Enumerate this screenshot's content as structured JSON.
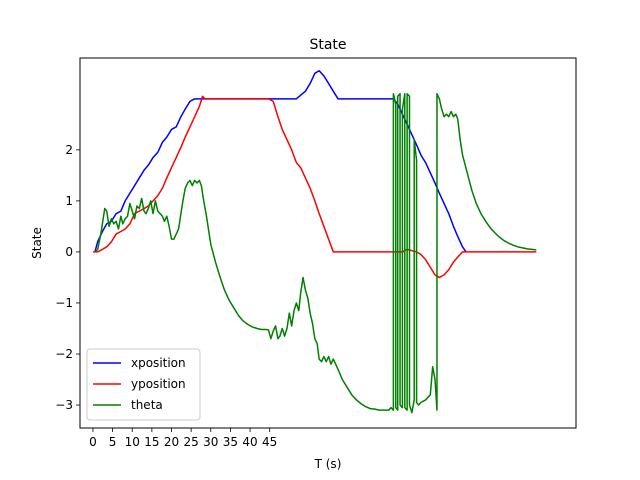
{
  "chart_data": {
    "type": "line",
    "title": "State",
    "xlabel": "T (s)",
    "ylabel": "State",
    "xlim": [
      -3.3,
      123
    ],
    "ylim": [
      -3.45,
      3.8
    ],
    "xticks": [
      0,
      5,
      10,
      15,
      20,
      25,
      30,
      35,
      40,
      45
    ],
    "yticks": [
      -3,
      -2,
      -1,
      0,
      1,
      2
    ],
    "grid": false,
    "legend_position": "lower-left",
    "series": [
      {
        "name": "xposition",
        "color": "#0000ff",
        "points": [
          [
            0.5,
            0.0
          ],
          [
            1.2,
            0.2
          ],
          [
            2.4,
            0.4
          ],
          [
            3.5,
            0.55
          ],
          [
            4.7,
            0.6
          ],
          [
            5.9,
            0.75
          ],
          [
            7.1,
            0.8
          ],
          [
            8.2,
            1.0
          ],
          [
            9.4,
            1.15
          ],
          [
            10.6,
            1.3
          ],
          [
            11.8,
            1.45
          ],
          [
            13.0,
            1.6
          ],
          [
            14.1,
            1.7
          ],
          [
            15.3,
            1.85
          ],
          [
            16.5,
            1.95
          ],
          [
            17.7,
            2.15
          ],
          [
            18.8,
            2.25
          ],
          [
            20.0,
            2.4
          ],
          [
            21.2,
            2.45
          ],
          [
            22.4,
            2.65
          ],
          [
            23.5,
            2.8
          ],
          [
            24.7,
            2.95
          ],
          [
            25.9,
            3.0
          ],
          [
            28.2,
            3.0
          ],
          [
            45.0,
            3.0
          ],
          [
            47.1,
            3.0
          ],
          [
            49.4,
            3.0
          ],
          [
            51.8,
            3.0
          ],
          [
            54.1,
            3.15
          ],
          [
            55.3,
            3.3
          ],
          [
            56.5,
            3.5
          ],
          [
            57.6,
            3.55
          ],
          [
            58.8,
            3.45
          ],
          [
            60.0,
            3.3
          ],
          [
            61.2,
            3.15
          ],
          [
            62.4,
            3.0
          ],
          [
            64.7,
            3.0
          ],
          [
            76.5,
            3.0
          ],
          [
            77.6,
            2.9
          ],
          [
            78.8,
            2.7
          ],
          [
            80.0,
            2.5
          ],
          [
            81.2,
            2.3
          ],
          [
            82.4,
            2.1
          ],
          [
            83.5,
            1.9
          ],
          [
            84.7,
            1.75
          ],
          [
            85.9,
            1.55
          ],
          [
            87.1,
            1.35
          ],
          [
            88.2,
            1.15
          ],
          [
            89.4,
            0.95
          ],
          [
            90.6,
            0.75
          ],
          [
            91.8,
            0.5
          ],
          [
            92.9,
            0.3
          ],
          [
            94.1,
            0.1
          ],
          [
            95.0,
            0.0
          ]
        ]
      },
      {
        "name": "yposition",
        "color": "#ff0000",
        "points": [
          [
            0.0,
            0.0
          ],
          [
            1.2,
            0.0
          ],
          [
            2.4,
            0.05
          ],
          [
            3.5,
            0.1
          ],
          [
            4.7,
            0.2
          ],
          [
            5.9,
            0.35
          ],
          [
            7.1,
            0.4
          ],
          [
            8.2,
            0.45
          ],
          [
            9.4,
            0.55
          ],
          [
            10.6,
            0.75
          ],
          [
            11.8,
            0.8
          ],
          [
            13.0,
            0.85
          ],
          [
            14.1,
            0.9
          ],
          [
            15.3,
            1.0
          ],
          [
            16.5,
            1.1
          ],
          [
            17.7,
            1.25
          ],
          [
            18.8,
            1.45
          ],
          [
            20.0,
            1.65
          ],
          [
            21.2,
            1.85
          ],
          [
            22.4,
            2.05
          ],
          [
            23.5,
            2.25
          ],
          [
            24.7,
            2.45
          ],
          [
            25.9,
            2.65
          ],
          [
            27.1,
            2.85
          ],
          [
            27.9,
            3.05
          ],
          [
            28.5,
            3.0
          ],
          [
            44.7,
            3.0
          ],
          [
            45.9,
            2.95
          ],
          [
            47.1,
            2.65
          ],
          [
            48.2,
            2.4
          ],
          [
            49.4,
            2.2
          ],
          [
            50.6,
            2.0
          ],
          [
            51.8,
            1.75
          ],
          [
            52.9,
            1.65
          ],
          [
            54.1,
            1.45
          ],
          [
            55.3,
            1.25
          ],
          [
            56.5,
            1.0
          ],
          [
            57.6,
            0.75
          ],
          [
            58.8,
            0.5
          ],
          [
            60.0,
            0.25
          ],
          [
            61.2,
            0.0
          ],
          [
            76.5,
            0.0
          ],
          [
            78.8,
            0.0
          ],
          [
            80.0,
            0.05
          ],
          [
            82.4,
            0.0
          ],
          [
            83.5,
            -0.05
          ],
          [
            84.7,
            -0.15
          ],
          [
            85.9,
            -0.3
          ],
          [
            87.1,
            -0.45
          ],
          [
            88.2,
            -0.5
          ],
          [
            89.4,
            -0.45
          ],
          [
            90.6,
            -0.35
          ],
          [
            91.8,
            -0.2
          ],
          [
            92.9,
            -0.1
          ],
          [
            94.1,
            0.0
          ],
          [
            112.9,
            0.0
          ]
        ]
      },
      {
        "name": "theta",
        "color": "#008000",
        "points": [
          [
            0.5,
            0.0
          ],
          [
            1.2,
            0.05
          ],
          [
            2.0,
            0.35
          ],
          [
            2.4,
            0.55
          ],
          [
            3.0,
            0.85
          ],
          [
            3.5,
            0.8
          ],
          [
            4.1,
            0.5
          ],
          [
            4.7,
            0.65
          ],
          [
            5.3,
            0.55
          ],
          [
            5.9,
            0.6
          ],
          [
            6.5,
            0.45
          ],
          [
            7.1,
            0.7
          ],
          [
            7.6,
            0.55
          ],
          [
            8.2,
            0.65
          ],
          [
            8.8,
            0.7
          ],
          [
            9.4,
            0.95
          ],
          [
            10.0,
            0.8
          ],
          [
            10.6,
            0.65
          ],
          [
            11.2,
            0.9
          ],
          [
            11.8,
            0.85
          ],
          [
            12.4,
            1.05
          ],
          [
            13.0,
            0.8
          ],
          [
            13.5,
            0.75
          ],
          [
            14.1,
            0.85
          ],
          [
            14.7,
            1.0
          ],
          [
            15.3,
            0.75
          ],
          [
            15.9,
            1.0
          ],
          [
            16.5,
            0.8
          ],
          [
            17.1,
            0.75
          ],
          [
            17.7,
            0.7
          ],
          [
            18.2,
            0.6
          ],
          [
            18.8,
            0.7
          ],
          [
            19.4,
            0.5
          ],
          [
            20.0,
            0.25
          ],
          [
            20.6,
            0.25
          ],
          [
            21.2,
            0.35
          ],
          [
            21.8,
            0.45
          ],
          [
            22.4,
            0.75
          ],
          [
            22.9,
            1.0
          ],
          [
            23.5,
            1.25
          ],
          [
            24.1,
            1.35
          ],
          [
            24.7,
            1.4
          ],
          [
            25.3,
            1.3
          ],
          [
            25.9,
            1.4
          ],
          [
            26.5,
            1.35
          ],
          [
            27.1,
            1.4
          ],
          [
            27.6,
            1.3
          ],
          [
            28.2,
            1.0
          ],
          [
            28.8,
            0.75
          ],
          [
            29.4,
            0.45
          ],
          [
            30.0,
            0.15
          ],
          [
            31.2,
            -0.2
          ],
          [
            32.4,
            -0.5
          ],
          [
            33.5,
            -0.75
          ],
          [
            34.7,
            -0.95
          ],
          [
            35.9,
            -1.1
          ],
          [
            37.1,
            -1.25
          ],
          [
            38.2,
            -1.35
          ],
          [
            39.4,
            -1.42
          ],
          [
            40.6,
            -1.47
          ],
          [
            41.8,
            -1.5
          ],
          [
            42.9,
            -1.52
          ],
          [
            44.1,
            -1.52
          ],
          [
            44.7,
            -1.53
          ],
          [
            45.3,
            -1.7
          ],
          [
            45.9,
            -1.55
          ],
          [
            46.5,
            -1.45
          ],
          [
            47.1,
            -1.7
          ],
          [
            47.6,
            -1.65
          ],
          [
            48.2,
            -1.5
          ],
          [
            48.8,
            -1.65
          ],
          [
            49.4,
            -1.5
          ],
          [
            50.0,
            -1.2
          ],
          [
            50.6,
            -1.45
          ],
          [
            51.2,
            -1.15
          ],
          [
            51.8,
            -1.0
          ],
          [
            52.4,
            -1.15
          ],
          [
            52.9,
            -0.8
          ],
          [
            53.5,
            -0.5
          ],
          [
            54.1,
            -0.75
          ],
          [
            54.7,
            -0.9
          ],
          [
            55.3,
            -1.2
          ],
          [
            55.9,
            -1.4
          ],
          [
            56.5,
            -1.7
          ],
          [
            57.1,
            -1.8
          ],
          [
            57.6,
            -2.1
          ],
          [
            58.2,
            -2.15
          ],
          [
            58.8,
            -2.05
          ],
          [
            59.4,
            -2.15
          ],
          [
            60.0,
            -2.05
          ],
          [
            60.6,
            -2.2
          ],
          [
            61.2,
            -2.1
          ],
          [
            62.4,
            -2.3
          ],
          [
            63.5,
            -2.5
          ],
          [
            64.7,
            -2.65
          ],
          [
            65.9,
            -2.8
          ],
          [
            67.1,
            -2.9
          ],
          [
            68.2,
            -2.97
          ],
          [
            69.4,
            -3.03
          ],
          [
            70.6,
            -3.07
          ],
          [
            71.8,
            -3.08
          ],
          [
            72.9,
            -3.1
          ],
          [
            75.3,
            -3.1
          ],
          [
            75.9,
            -3.05
          ],
          [
            76.5,
            -3.1
          ],
          [
            76.5,
            3.1
          ],
          [
            77.1,
            2.9
          ],
          [
            77.1,
            -3.05
          ],
          [
            77.6,
            -3.1
          ],
          [
            77.6,
            3.05
          ],
          [
            78.2,
            3.1
          ],
          [
            78.2,
            -3.0
          ],
          [
            78.8,
            -3.05
          ],
          [
            78.8,
            2.8
          ],
          [
            79.4,
            3.1
          ],
          [
            79.4,
            -3.05
          ],
          [
            80.0,
            -3.1
          ],
          [
            80.0,
            3.1
          ],
          [
            80.6,
            3.05
          ],
          [
            80.6,
            -3.0
          ],
          [
            81.2,
            -3.15
          ],
          [
            81.8,
            -2.9
          ],
          [
            81.8,
            2.2
          ],
          [
            82.4,
            1.8
          ],
          [
            82.4,
            -2.95
          ],
          [
            82.9,
            -3.0
          ],
          [
            83.5,
            -2.95
          ],
          [
            84.7,
            -2.9
          ],
          [
            85.9,
            -2.8
          ],
          [
            86.5,
            -2.25
          ],
          [
            87.1,
            -2.5
          ],
          [
            87.6,
            -3.1
          ],
          [
            87.6,
            3.1
          ],
          [
            88.2,
            3.0
          ],
          [
            88.8,
            2.8
          ],
          [
            89.4,
            2.65
          ],
          [
            90.0,
            2.7
          ],
          [
            90.6,
            2.65
          ],
          [
            91.2,
            2.75
          ],
          [
            91.8,
            2.65
          ],
          [
            92.4,
            2.7
          ],
          [
            92.9,
            2.6
          ],
          [
            93.5,
            2.2
          ],
          [
            94.1,
            1.9
          ],
          [
            95.3,
            1.55
          ],
          [
            96.5,
            1.2
          ],
          [
            97.6,
            0.95
          ],
          [
            98.8,
            0.75
          ],
          [
            100.0,
            0.6
          ],
          [
            101.2,
            0.47
          ],
          [
            102.4,
            0.37
          ],
          [
            103.5,
            0.29
          ],
          [
            104.7,
            0.22
          ],
          [
            105.9,
            0.17
          ],
          [
            107.1,
            0.13
          ],
          [
            108.2,
            0.1
          ],
          [
            109.4,
            0.08
          ],
          [
            110.6,
            0.06
          ],
          [
            112.9,
            0.04
          ]
        ]
      }
    ]
  }
}
